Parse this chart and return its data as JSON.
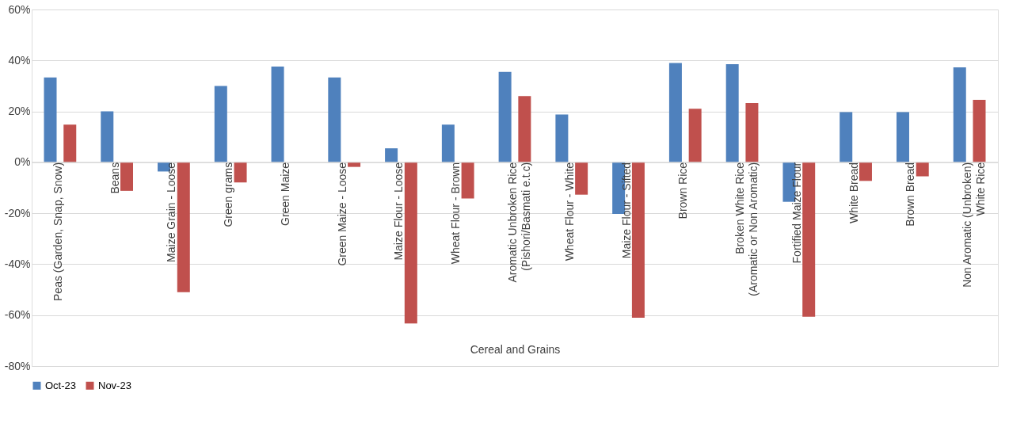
{
  "chart_data": {
    "type": "bar",
    "xlabel": "Cereal and Grains",
    "categories": [
      "Peas (Garden, Snap, Snow)",
      "Beans",
      "Maize Grain - Loose",
      "Green grams",
      "Green Maize",
      "Green Maize - Loose",
      "Maize Flour - Loose",
      "Wheat Flour - Brown",
      "Aromatic Unbroken Rice (Pishori/Basmati e.t.c)",
      "Wheat Flour - White",
      "Maize Flour - Sifted",
      "Brown Rice",
      "Broken White Rice (Aromatic or Non Aromatic)",
      "Fortified Maize Flour",
      "White Bread",
      "Brown Bread",
      "Non Aromatic (Unbroken) White Rice"
    ],
    "series": [
      {
        "name": "Oct-23",
        "color": "#4f81bd",
        "values": [
          33.3,
          20,
          -3.6,
          30,
          37.6,
          33.3,
          5.5,
          14.8,
          35.5,
          18.8,
          -20.3,
          39,
          38.5,
          -15.5,
          19.7,
          19.7,
          37.3
        ]
      },
      {
        "name": "Nov-23",
        "color": "#c0504d",
        "values": [
          14.8,
          -11.2,
          -51,
          -7.9,
          null,
          -1.8,
          -63.3,
          -14.2,
          26,
          -12.7,
          -61,
          21,
          23.3,
          -60.6,
          -7.3,
          -5.5,
          24.5
        ]
      }
    ],
    "ylim": [
      -80,
      60
    ],
    "yticks": [
      {
        "value": -80,
        "label": "-80%"
      },
      {
        "value": -60,
        "label": "-60%"
      },
      {
        "value": -40,
        "label": "-40%"
      },
      {
        "value": -20,
        "label": "-20%"
      },
      {
        "value": 0,
        "label": "0%"
      },
      {
        "value": 20,
        "label": "20%"
      },
      {
        "value": 40,
        "label": "40%"
      },
      {
        "value": 60,
        "label": "60%"
      }
    ],
    "grid": "y",
    "legend": "bottom"
  }
}
